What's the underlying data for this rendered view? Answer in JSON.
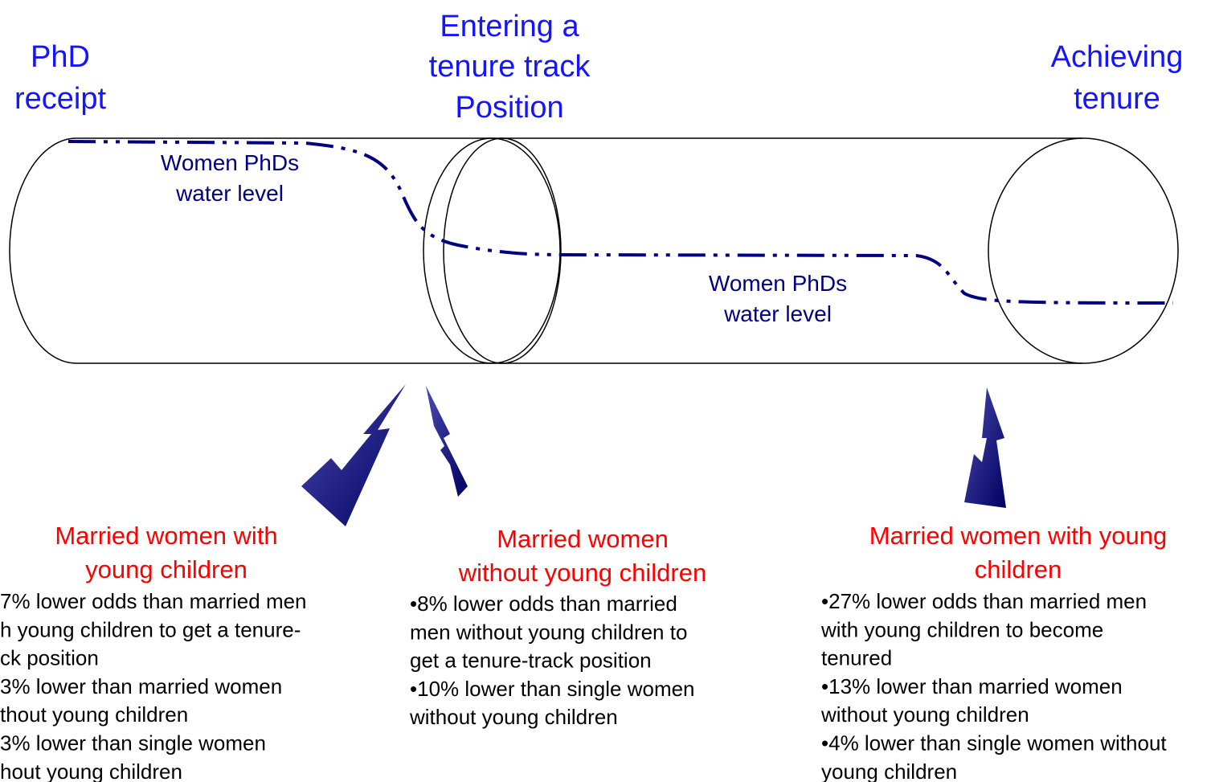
{
  "stages": [
    {
      "lines": [
        "PhD",
        "receipt"
      ]
    },
    {
      "lines": [
        "Entering a",
        "tenure track",
        "Position"
      ]
    },
    {
      "lines": [
        "Achieving",
        "tenure"
      ]
    }
  ],
  "water_labels": [
    {
      "lines": [
        "Women PhDs",
        "water level"
      ]
    },
    {
      "lines": [
        "Women PhDs",
        "water level"
      ]
    }
  ],
  "findings": [
    {
      "heading": [
        "Married women with",
        "young children"
      ],
      "lines": [
        "7% lower odds than married men",
        "h young children to get a tenure-",
        "ck position",
        "3% lower than married women",
        "thout young children",
        "3% lower than single women",
        "hout young children"
      ]
    },
    {
      "heading": [
        "Married women",
        "without young children"
      ],
      "lines": [
        "•8% lower odds than married",
        "men without young children to",
        "get a tenure-track position",
        "•10% lower than single women",
        "without young children"
      ]
    },
    {
      "heading": [
        "Married women with young",
        "children"
      ],
      "lines": [
        "•27% lower odds than married men",
        "with young children to become",
        "tenured",
        "•13% lower than married women",
        "without young children",
        "•4% lower than single women without",
        "young children"
      ]
    }
  ]
}
